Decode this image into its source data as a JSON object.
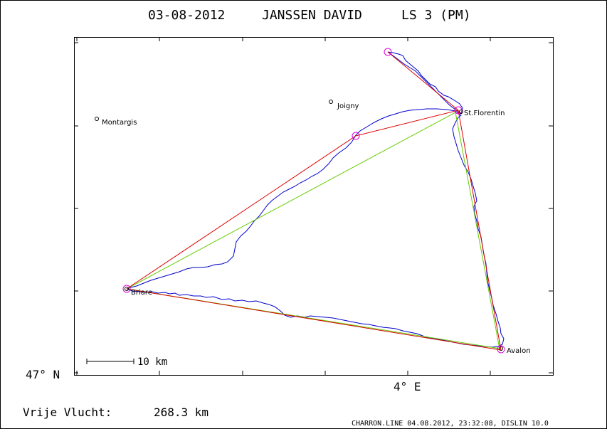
{
  "header": {
    "date": "03-08-2012",
    "pilot": "JANSSEN DAVID",
    "class": "LS 3 (PM)"
  },
  "map": {
    "latitude_label": "47° N",
    "longitude_label": "4° E",
    "scale_label": "10 km",
    "towns": [
      {
        "name": "Montargis"
      },
      {
        "name": "Joigny"
      },
      {
        "name": "St.Florentin"
      },
      {
        "name": "Briare"
      },
      {
        "name": "Avalon"
      }
    ],
    "colors": {
      "track": "#0000cc",
      "task_leg": "#dd0000",
      "optimized_leg": "#66cc00",
      "turnpoint": "#dd00dd",
      "frame": "#000000"
    }
  },
  "footer": {
    "free_flight_label": "Vrije Vlucht:",
    "free_flight_value": "268.3 km",
    "credits": "CHARRON.LINE 04.08.2012, 23:32:08, DISLIN 10.0"
  }
}
